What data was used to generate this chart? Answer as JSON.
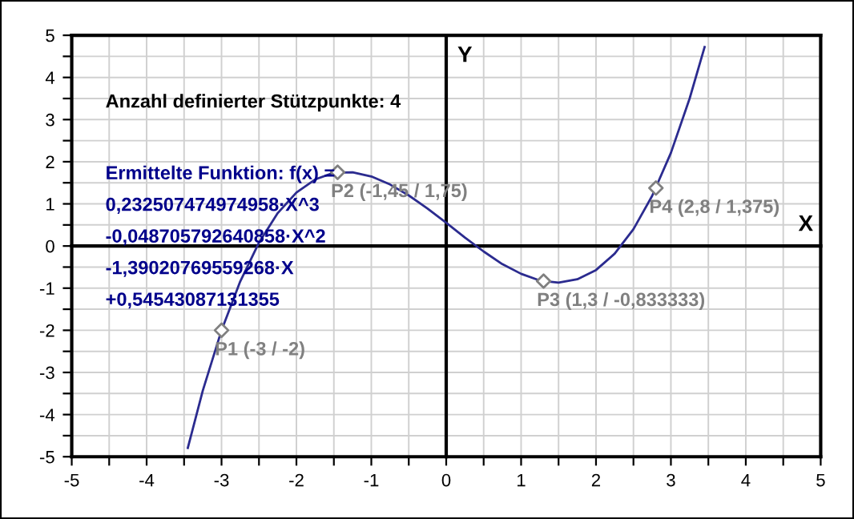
{
  "chart_data": {
    "type": "line",
    "xlabel": "X",
    "ylabel": "Y",
    "xlim": [
      -5,
      5
    ],
    "ylim": [
      -5,
      5
    ],
    "xticks": [
      -5,
      {
        "value": -4.5,
        "label": null
      },
      -4,
      {
        "value": -3.5,
        "label": null
      },
      -3,
      {
        "value": -2.5,
        "label": null
      },
      -2,
      {
        "value": -1.5,
        "label": null
      },
      -1,
      {
        "value": -0.5,
        "label": null
      },
      0,
      {
        "value": 0.5,
        "label": null
      },
      1,
      {
        "value": 1.5,
        "label": null
      },
      2,
      {
        "value": 2.5,
        "label": null
      },
      3,
      {
        "value": 3.5,
        "label": null
      },
      4,
      {
        "value": 4.5,
        "label": null
      },
      5
    ],
    "yticks": [
      -5,
      {
        "value": -4.5,
        "label": null
      },
      -4,
      {
        "value": -3.5,
        "label": null
      },
      -3,
      {
        "value": -2.5,
        "label": null
      },
      -2,
      {
        "value": -1.5,
        "label": null
      },
      -1,
      {
        "value": -0.5,
        "label": null
      },
      0,
      {
        "value": 0.5,
        "label": null
      },
      1,
      {
        "value": 1.5,
        "label": null
      },
      2,
      {
        "value": 2.5,
        "label": null
      },
      3,
      {
        "value": 3.5,
        "label": null
      },
      4,
      {
        "value": 4.5,
        "label": null
      },
      5
    ],
    "grid": true,
    "series": [
      {
        "color": "#2b2b8f",
        "marker": "none",
        "line_style": "solid",
        "x": [
          -3.45,
          -3.25,
          -3,
          -2.75,
          -2.5,
          -2.25,
          -2,
          -1.75,
          -1.5,
          -1.25,
          -1,
          -0.75,
          -0.5,
          -0.25,
          0,
          0.25,
          0.5,
          0.75,
          1,
          1.25,
          1.5,
          1.75,
          2,
          2.25,
          2.5,
          2.75,
          3,
          3.25,
          3.45
        ],
        "values": [
          -4.79,
          -3.43,
          -2.0,
          -0.84,
          0.08,
          0.78,
          1.27,
          1.58,
          1.74,
          1.75,
          1.65,
          1.46,
          1.2,
          0.89,
          0.55,
          0.2,
          -0.13,
          -0.43,
          -0.66,
          -0.82,
          -0.87,
          -0.79,
          -0.57,
          -0.18,
          0.4,
          1.19,
          2.21,
          3.5,
          4.72
        ]
      },
      {
        "type": "scatter",
        "color": "#808080",
        "marker": "diamond",
        "x": [
          -3,
          -1.45,
          1.3,
          2.8
        ],
        "values": [
          -2,
          1.75,
          -0.833333,
          1.375
        ]
      }
    ],
    "annotations": [
      "Anzahl definierter Stützpunkte: 4",
      "Ermittelte Funktion: f(x) =",
      "0,232507474974958·X^3",
      "-0,048705792640858·X^2",
      "-1,39020769559268·X",
      "+0,54543087131355",
      {
        "text": "P1 (-3 / -2)",
        "x": -3,
        "y": -2
      },
      {
        "text": "P2 (-1,45 / 1,75)",
        "x": -1.45,
        "y": 1.75
      },
      {
        "text": "P3 (1,3 / -0,833333)",
        "x": 1.3,
        "y": -0.833333
      },
      {
        "text": "P4 (2,8 / 1,375)",
        "x": 2.8,
        "y": 1.375
      }
    ]
  }
}
